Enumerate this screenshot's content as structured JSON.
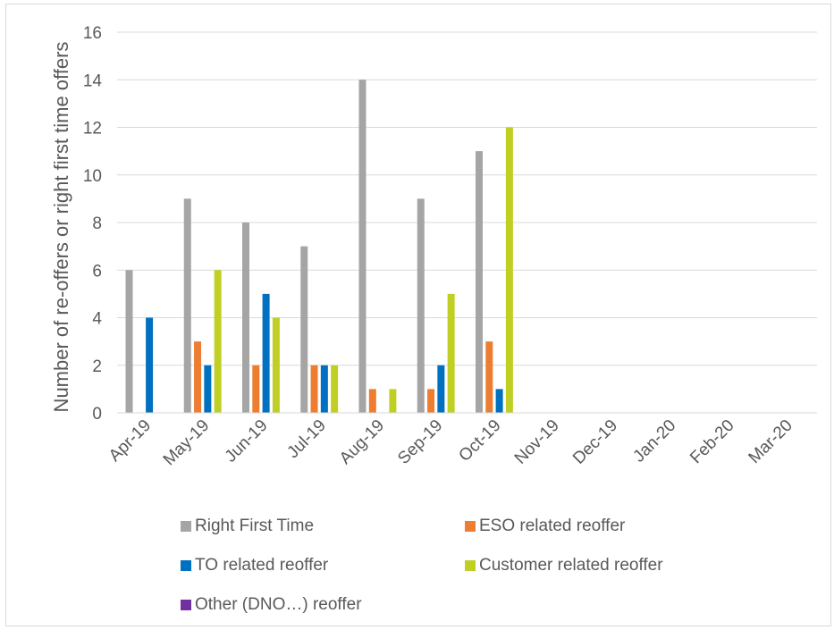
{
  "chart_data": {
    "type": "bar",
    "title": "",
    "xlabel": "",
    "ylabel": "Number of re-offers or right first time offers",
    "ylim": [
      0,
      16
    ],
    "yticks": [
      0,
      2,
      4,
      6,
      8,
      10,
      12,
      14,
      16
    ],
    "grid": true,
    "legend_position": "bottom",
    "categories": [
      "Apr-19",
      "May-19",
      "Jun-19",
      "Jul-19",
      "Aug-19",
      "Sep-19",
      "Oct-19",
      "Nov-19",
      "Dec-19",
      "Jan-20",
      "Feb-20",
      "Mar-20"
    ],
    "series": [
      {
        "name": "Right First Time",
        "color": "#a5a5a5",
        "values": [
          6,
          9,
          8,
          7,
          14,
          9,
          11,
          0,
          0,
          0,
          0,
          0
        ]
      },
      {
        "name": "ESO related reoffer",
        "color": "#ed7d31",
        "values": [
          0,
          3,
          2,
          2,
          1,
          1,
          3,
          0,
          0,
          0,
          0,
          0
        ]
      },
      {
        "name": "TO related reoffer",
        "color": "#0070c0",
        "values": [
          4,
          2,
          5,
          2,
          0,
          2,
          1,
          0,
          0,
          0,
          0,
          0
        ]
      },
      {
        "name": "Customer related reoffer",
        "color": "#c0cf24",
        "values": [
          0,
          6,
          4,
          2,
          1,
          5,
          12,
          0,
          0,
          0,
          0,
          0
        ]
      },
      {
        "name": "Other (DNO…) reoffer",
        "color": "#7030a0",
        "values": [
          0,
          0,
          0,
          0,
          0,
          0,
          0,
          0,
          0,
          0,
          0,
          0
        ]
      }
    ]
  },
  "colors": {
    "grid": "#d9d9d9",
    "axis": "#d9d9d9",
    "text": "#595959"
  }
}
